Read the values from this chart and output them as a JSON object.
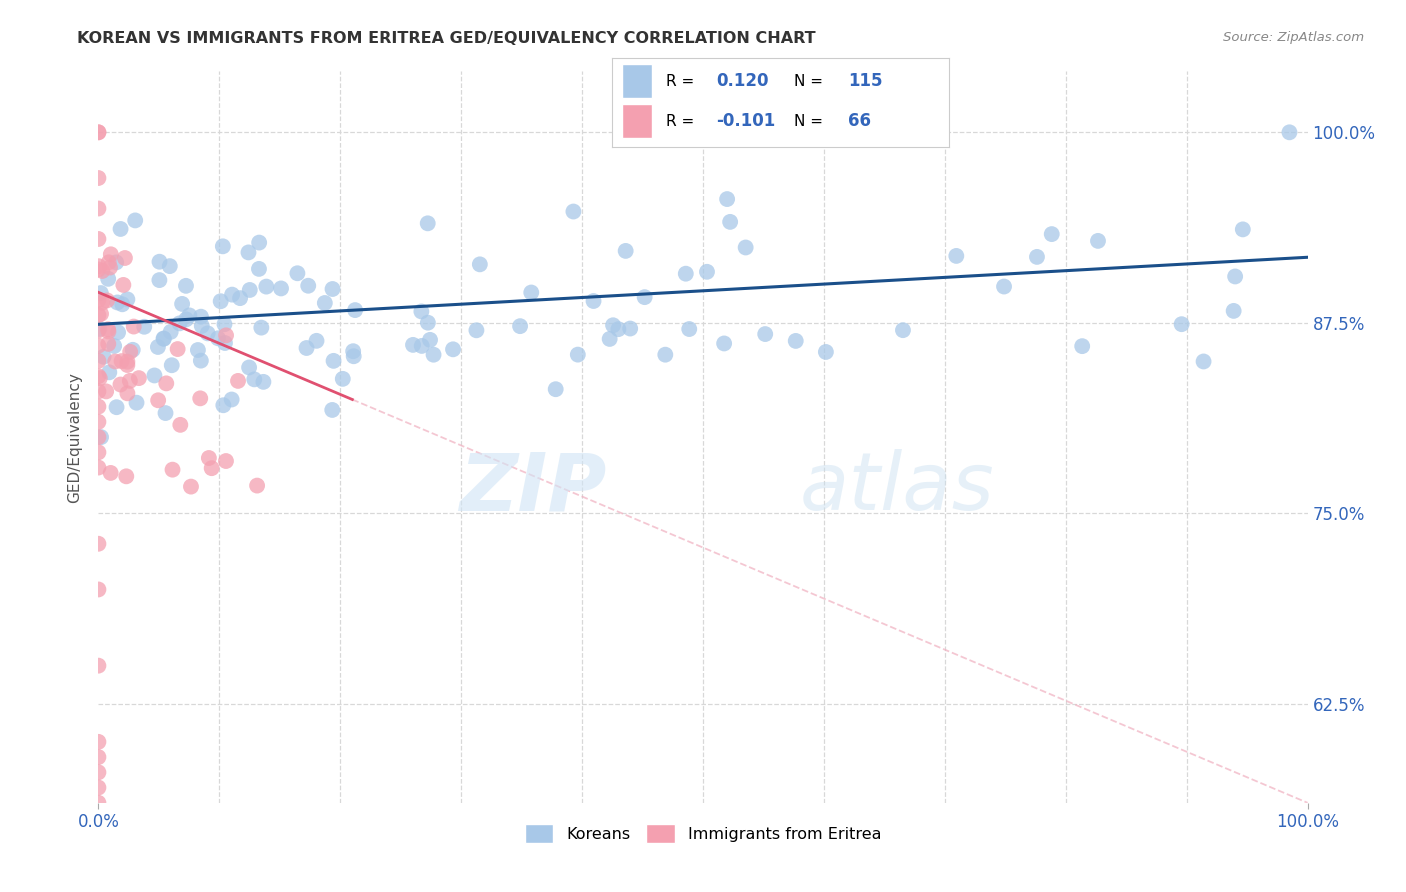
{
  "title": "KOREAN VS IMMIGRANTS FROM ERITREA GED/EQUIVALENCY CORRELATION CHART",
  "source": "Source: ZipAtlas.com",
  "ylabel": "GED/Equivalency",
  "ytick_labels_right": [
    "100.0%",
    "87.5%",
    "75.0%",
    "62.5%"
  ],
  "ytick_values": [
    1.0,
    0.875,
    0.75,
    0.625
  ],
  "xlim": [
    0.0,
    1.0
  ],
  "ylim": [
    0.56,
    1.04
  ],
  "legend_korean_R": "0.120",
  "legend_korean_N": "115",
  "legend_eritrea_R": "-0.101",
  "legend_eritrea_N": "66",
  "korean_color": "#a8c8e8",
  "eritrea_color": "#f4a0b0",
  "korean_line_color": "#1a4f8a",
  "eritrea_line_solid_color": "#e05070",
  "eritrea_line_dash_color": "#f0b0c0",
  "background_color": "#ffffff",
  "grid_color": "#d8d8d8",
  "title_color": "#333333",
  "source_color": "#888888",
  "axis_label_color": "#3366bb",
  "legend_R_color": "#000000",
  "legend_N_color": "#3366bb",
  "watermark_zip_color": "#d0e4f5",
  "watermark_atlas_color": "#c8dff0"
}
